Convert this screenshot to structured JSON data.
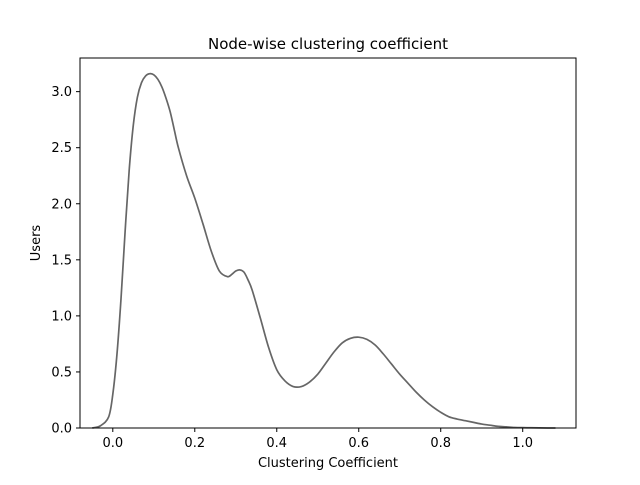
{
  "chart_data": {
    "type": "line",
    "title": "Node-wise clustering coefficient",
    "xlabel": "Clustering Coefficient",
    "ylabel": "Users",
    "xlim": [
      -0.08,
      1.13
    ],
    "ylim": [
      0,
      3.3
    ],
    "xticks": [
      0.0,
      0.2,
      0.4,
      0.6,
      0.8,
      1.0
    ],
    "xtick_labels": [
      "0.0",
      "0.2",
      "0.4",
      "0.6",
      "0.8",
      "1.0"
    ],
    "yticks": [
      0.0,
      0.5,
      1.0,
      1.5,
      2.0,
      2.5,
      3.0
    ],
    "ytick_labels": [
      "0.0",
      "0.5",
      "1.0",
      "1.5",
      "2.0",
      "2.5",
      "3.0"
    ],
    "grid": false,
    "line_color": "#666666",
    "series": [
      {
        "x": [
          -0.05,
          -0.03,
          -0.01,
          0.0,
          0.01,
          0.02,
          0.03,
          0.04,
          0.05,
          0.06,
          0.07,
          0.08,
          0.09,
          0.1,
          0.11,
          0.12,
          0.13,
          0.14,
          0.15,
          0.16,
          0.18,
          0.2,
          0.22,
          0.24,
          0.26,
          0.28,
          0.29,
          0.3,
          0.31,
          0.32,
          0.33,
          0.34,
          0.36,
          0.38,
          0.4,
          0.42,
          0.44,
          0.46,
          0.48,
          0.5,
          0.52,
          0.54,
          0.56,
          0.58,
          0.6,
          0.62,
          0.64,
          0.66,
          0.68,
          0.7,
          0.72,
          0.74,
          0.76,
          0.78,
          0.8,
          0.82,
          0.84,
          0.86,
          0.88,
          0.9,
          0.92,
          0.94,
          0.96,
          0.98,
          1.0,
          1.02,
          1.04,
          1.06,
          1.08
        ],
        "y": [
          0.0,
          0.02,
          0.1,
          0.3,
          0.65,
          1.15,
          1.75,
          2.3,
          2.7,
          2.95,
          3.08,
          3.14,
          3.16,
          3.15,
          3.11,
          3.04,
          2.94,
          2.82,
          2.66,
          2.5,
          2.25,
          2.05,
          1.82,
          1.58,
          1.4,
          1.35,
          1.37,
          1.4,
          1.41,
          1.39,
          1.32,
          1.23,
          0.98,
          0.72,
          0.52,
          0.42,
          0.37,
          0.37,
          0.41,
          0.48,
          0.58,
          0.68,
          0.76,
          0.8,
          0.81,
          0.79,
          0.74,
          0.66,
          0.57,
          0.48,
          0.4,
          0.32,
          0.25,
          0.19,
          0.14,
          0.1,
          0.08,
          0.065,
          0.05,
          0.035,
          0.025,
          0.015,
          0.01,
          0.005,
          0.003,
          0.002,
          0.001,
          0.0,
          0.0
        ]
      }
    ]
  }
}
